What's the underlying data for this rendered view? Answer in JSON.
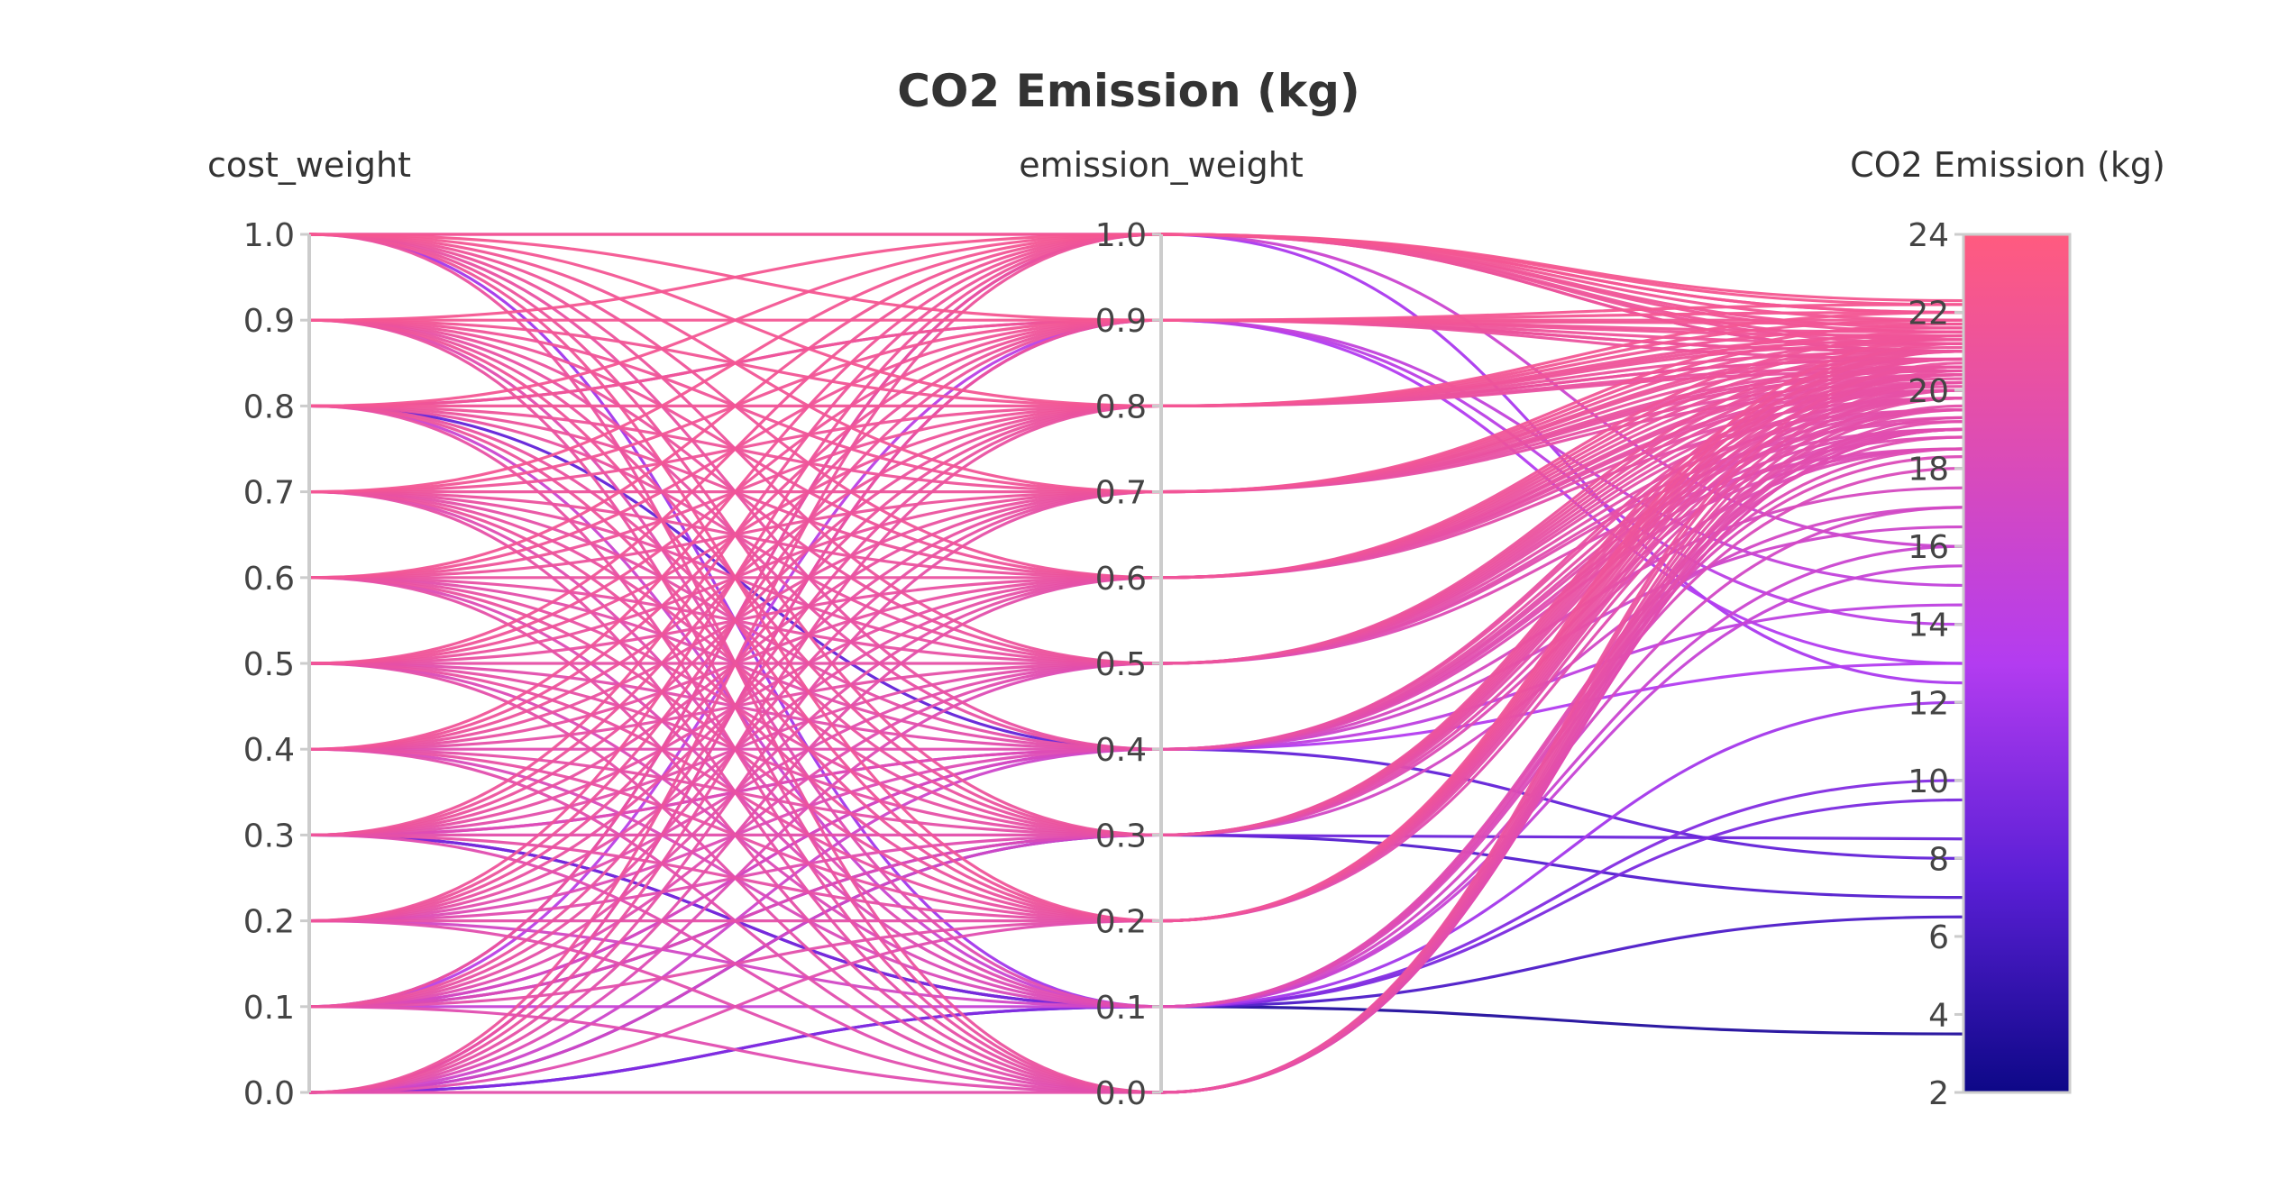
{
  "chart_data": {
    "type": "parallel_coordinates",
    "title": "CO2 Emission (kg)",
    "dimensions": [
      {
        "label": "cost_weight",
        "range": [
          0,
          1
        ],
        "ticks": [
          "0.0",
          "0.1",
          "0.2",
          "0.3",
          "0.4",
          "0.5",
          "0.6",
          "0.7",
          "0.8",
          "0.9",
          "1.0"
        ]
      },
      {
        "label": "emission_weight",
        "range": [
          0,
          1
        ],
        "ticks": [
          "0.0",
          "0.1",
          "0.2",
          "0.3",
          "0.4",
          "0.5",
          "0.6",
          "0.7",
          "0.8",
          "0.9",
          "1.0"
        ]
      },
      {
        "label": "CO2 Emission (kg)",
        "range": [
          2,
          24
        ],
        "ticks": [
          "2",
          "4",
          "6",
          "8",
          "10",
          "12",
          "14",
          "16",
          "18",
          "20",
          "22",
          "24"
        ]
      }
    ],
    "colorscale": {
      "min": 2,
      "max": 24,
      "stops": [
        [
          "0.0",
          "#0d0887"
        ],
        [
          "0.25",
          "#5b1fd6"
        ],
        [
          "0.5",
          "#b33cf0"
        ],
        [
          "0.75",
          "#dd4cb5"
        ],
        [
          "1.0",
          "#ff5b7f"
        ]
      ]
    },
    "records": [
      [
        0.0,
        0.0,
        19.5
      ],
      [
        0.0,
        0.1,
        6.5
      ],
      [
        0.0,
        0.2,
        19.0
      ],
      [
        0.0,
        0.3,
        17.0
      ],
      [
        0.0,
        0.4,
        16.5
      ],
      [
        0.0,
        0.5,
        18.5
      ],
      [
        0.0,
        0.6,
        19.5
      ],
      [
        0.0,
        0.7,
        20.0
      ],
      [
        0.0,
        0.8,
        20.5
      ],
      [
        0.0,
        0.9,
        20.8
      ],
      [
        0.0,
        1.0,
        21.0
      ],
      [
        0.1,
        0.0,
        19.0
      ],
      [
        0.1,
        0.1,
        15.5
      ],
      [
        0.1,
        0.2,
        19.5
      ],
      [
        0.1,
        0.3,
        18.5
      ],
      [
        0.1,
        0.4,
        17.5
      ],
      [
        0.1,
        0.5,
        19.0
      ],
      [
        0.1,
        0.6,
        19.8
      ],
      [
        0.1,
        0.7,
        20.2
      ],
      [
        0.1,
        0.8,
        20.6
      ],
      [
        0.1,
        0.9,
        14.0
      ],
      [
        0.1,
        1.0,
        21.0
      ],
      [
        0.2,
        0.0,
        19.2
      ],
      [
        0.2,
        0.1,
        17.0
      ],
      [
        0.2,
        0.2,
        19.8
      ],
      [
        0.2,
        0.3,
        19.0
      ],
      [
        0.2,
        0.4,
        18.5
      ],
      [
        0.2,
        0.5,
        19.2
      ],
      [
        0.2,
        0.6,
        20.0
      ],
      [
        0.2,
        0.7,
        20.4
      ],
      [
        0.2,
        0.8,
        20.8
      ],
      [
        0.2,
        0.9,
        21.0
      ],
      [
        0.2,
        1.0,
        21.2
      ],
      [
        0.3,
        0.0,
        19.0
      ],
      [
        0.3,
        0.1,
        3.5
      ],
      [
        0.3,
        0.2,
        20.0
      ],
      [
        0.3,
        0.3,
        19.5
      ],
      [
        0.3,
        0.4,
        18.8
      ],
      [
        0.3,
        0.5,
        19.5
      ],
      [
        0.3,
        0.6,
        20.1
      ],
      [
        0.3,
        0.7,
        20.5
      ],
      [
        0.3,
        0.8,
        20.8
      ],
      [
        0.3,
        0.9,
        21.0
      ],
      [
        0.3,
        1.0,
        21.3
      ],
      [
        0.4,
        0.0,
        19.3
      ],
      [
        0.4,
        0.1,
        18.0
      ],
      [
        0.4,
        0.2,
        20.2
      ],
      [
        0.4,
        0.3,
        19.8
      ],
      [
        0.4,
        0.4,
        19.0
      ],
      [
        0.4,
        0.5,
        19.8
      ],
      [
        0.4,
        0.6,
        20.3
      ],
      [
        0.4,
        0.7,
        20.6
      ],
      [
        0.4,
        0.8,
        21.0
      ],
      [
        0.4,
        0.9,
        21.2
      ],
      [
        0.4,
        1.0,
        21.5
      ],
      [
        0.5,
        0.0,
        19.6
      ],
      [
        0.5,
        0.1,
        18.3
      ],
      [
        0.5,
        0.2,
        20.4
      ],
      [
        0.5,
        0.3,
        20.0
      ],
      [
        0.5,
        0.4,
        19.3
      ],
      [
        0.5,
        0.5,
        20.0
      ],
      [
        0.5,
        0.6,
        20.4
      ],
      [
        0.5,
        0.7,
        20.8
      ],
      [
        0.5,
        0.8,
        21.2
      ],
      [
        0.5,
        0.9,
        21.4
      ],
      [
        0.5,
        1.0,
        21.6
      ],
      [
        0.6,
        0.0,
        19.8
      ],
      [
        0.6,
        0.1,
        18.5
      ],
      [
        0.6,
        0.2,
        20.6
      ],
      [
        0.6,
        0.3,
        20.2
      ],
      [
        0.6,
        0.4,
        19.5
      ],
      [
        0.6,
        0.5,
        20.2
      ],
      [
        0.6,
        0.6,
        20.6
      ],
      [
        0.6,
        0.7,
        21.0
      ],
      [
        0.6,
        0.8,
        21.3
      ],
      [
        0.6,
        0.9,
        21.5
      ],
      [
        0.6,
        1.0,
        21.8
      ],
      [
        0.7,
        0.0,
        20.0
      ],
      [
        0.7,
        0.1,
        18.8
      ],
      [
        0.7,
        0.2,
        20.8
      ],
      [
        0.7,
        0.3,
        20.4
      ],
      [
        0.7,
        0.4,
        19.8
      ],
      [
        0.7,
        0.5,
        20.4
      ],
      [
        0.7,
        0.6,
        20.8
      ],
      [
        0.7,
        0.7,
        21.1
      ],
      [
        0.7,
        0.8,
        21.4
      ],
      [
        0.7,
        0.9,
        21.7
      ],
      [
        0.7,
        1.0,
        22.0
      ],
      [
        0.8,
        0.0,
        20.2
      ],
      [
        0.8,
        0.1,
        16.0
      ],
      [
        0.8,
        0.2,
        21.0
      ],
      [
        0.8,
        0.3,
        20.6
      ],
      [
        0.8,
        0.4,
        8.0
      ],
      [
        0.8,
        0.5,
        20.6
      ],
      [
        0.8,
        0.6,
        21.0
      ],
      [
        0.8,
        0.7,
        21.3
      ],
      [
        0.8,
        0.8,
        21.6
      ],
      [
        0.8,
        0.9,
        21.8
      ],
      [
        0.8,
        1.0,
        22.0
      ],
      [
        0.9,
        0.0,
        20.5
      ],
      [
        0.9,
        0.1,
        19.0
      ],
      [
        0.9,
        0.2,
        21.2
      ],
      [
        0.9,
        0.3,
        20.8
      ],
      [
        0.9,
        0.4,
        20.2
      ],
      [
        0.9,
        0.5,
        20.8
      ],
      [
        0.9,
        0.6,
        21.2
      ],
      [
        0.9,
        0.7,
        21.5
      ],
      [
        0.9,
        0.8,
        21.8
      ],
      [
        0.9,
        0.9,
        22.0
      ],
      [
        0.9,
        1.0,
        22.2
      ],
      [
        1.0,
        0.0,
        20.7
      ],
      [
        1.0,
        0.1,
        12.0
      ],
      [
        1.0,
        0.2,
        21.4
      ],
      [
        1.0,
        0.3,
        21.0
      ],
      [
        1.0,
        0.4,
        20.4
      ],
      [
        1.0,
        0.5,
        21.0
      ],
      [
        1.0,
        0.6,
        21.4
      ],
      [
        1.0,
        0.7,
        21.7
      ],
      [
        1.0,
        0.8,
        22.0
      ],
      [
        1.0,
        0.9,
        22.2
      ],
      [
        1.0,
        1.0,
        22.3
      ],
      [
        0.0,
        0.1,
        10.0
      ],
      [
        0.0,
        0.3,
        7.0
      ],
      [
        0.1,
        0.3,
        8.5
      ],
      [
        0.1,
        1.0,
        12.5
      ],
      [
        0.3,
        0.4,
        13.0
      ],
      [
        0.8,
        0.9,
        15.0
      ],
      [
        0.1,
        0.4,
        14.5
      ],
      [
        0.3,
        0.1,
        9.5
      ],
      [
        1.0,
        1.0,
        16.0
      ],
      [
        0.0,
        0.9,
        13.0
      ]
    ]
  }
}
